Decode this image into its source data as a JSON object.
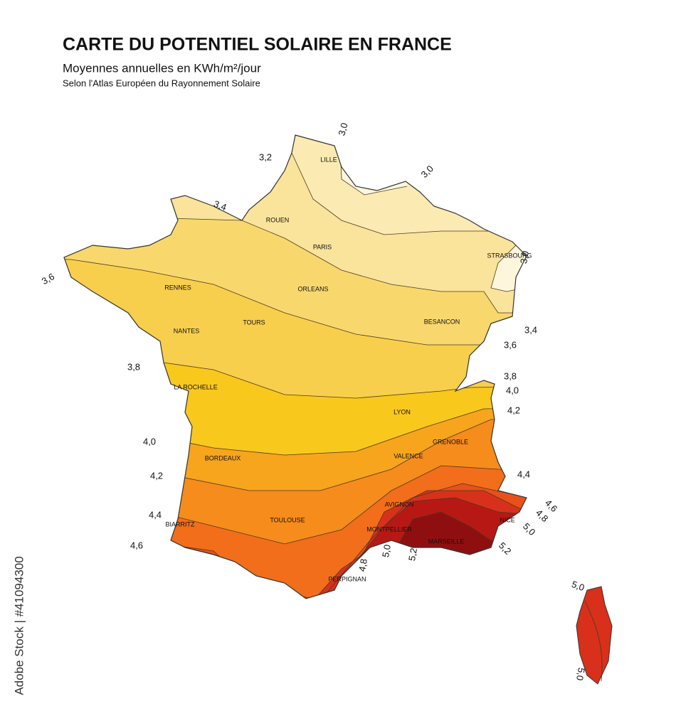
{
  "header": {
    "title": "CARTE DU POTENTIEL SOLAIRE EN FRANCE",
    "subtitle": "Moyennes annuelles en KWh/m²/jour",
    "source": "Selon l'Atlas Européen du Rayonnement Solaire"
  },
  "cities": [
    "LILLE",
    "ROUEN",
    "PARIS",
    "STRASBOURG",
    "RENNES",
    "ORLEANS",
    "TOURS",
    "NANTES",
    "BESANCON",
    "LA ROCHELLE",
    "LYON",
    "GRENOBLE",
    "BORDEAUX",
    "VALENCE",
    "TOULOUSE",
    "AVIGNON",
    "BIARRITZ",
    "MONTPELLIER",
    "NICE",
    "MARSEILLE",
    "PERPIGNAN"
  ],
  "isoline_labels": [
    "3,0",
    "3,2",
    "3,0",
    "3,4",
    "3,6",
    "3,0",
    "3,4",
    "3,6",
    "3,8",
    "3,8",
    "4,0",
    "4,2",
    "4,0",
    "4,2",
    "4,4",
    "4,6",
    "4,4",
    "4,6",
    "4,8",
    "5,0",
    "5,2",
    "4,8",
    "5,0",
    "5,2",
    "5,0",
    "5,0"
  ],
  "watermark": "Adobe Stock | #41094300"
}
